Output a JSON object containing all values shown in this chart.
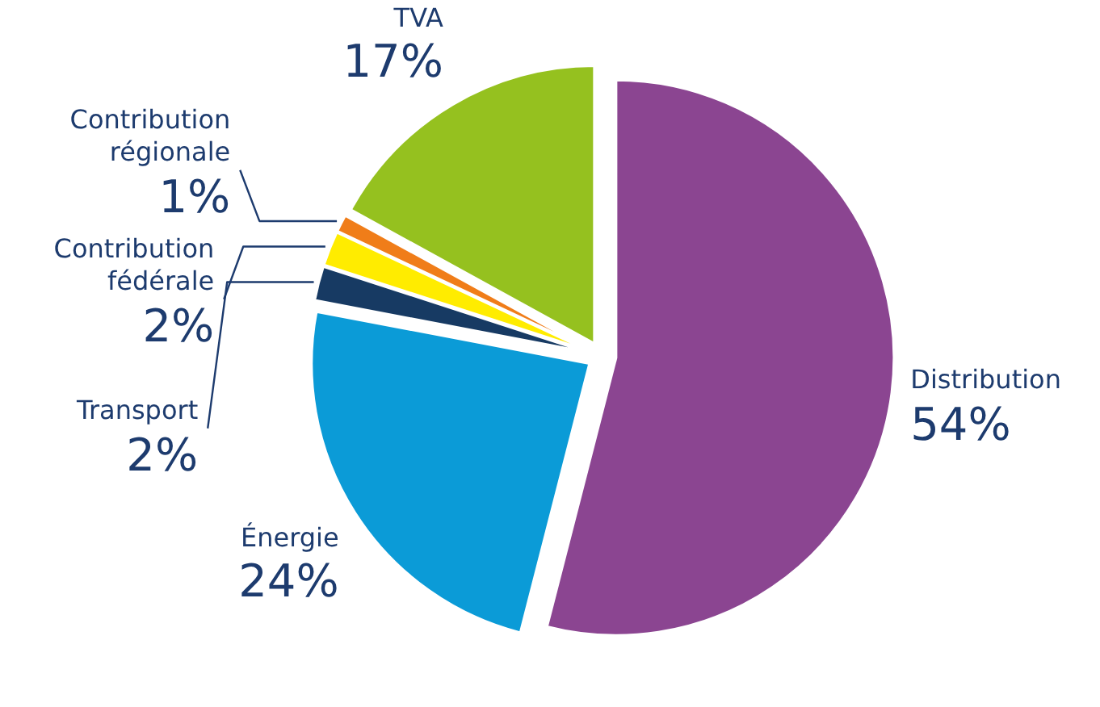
{
  "chart_data": {
    "type": "pie",
    "categories": [
      "Distribution",
      "Énergie",
      "Transport",
      "Contribution fédérale",
      "Contribution régionale",
      "TVA"
    ],
    "values": [
      54,
      24,
      2,
      2,
      1,
      17
    ],
    "value_labels": [
      "54%",
      "24%",
      "2%",
      "2%",
      "1%",
      "17%"
    ],
    "colors": [
      "#8b4591",
      "#0b9bd7",
      "#173a63",
      "#ffec00",
      "#f07d19",
      "#95c11f"
    ],
    "legend": false
  }
}
